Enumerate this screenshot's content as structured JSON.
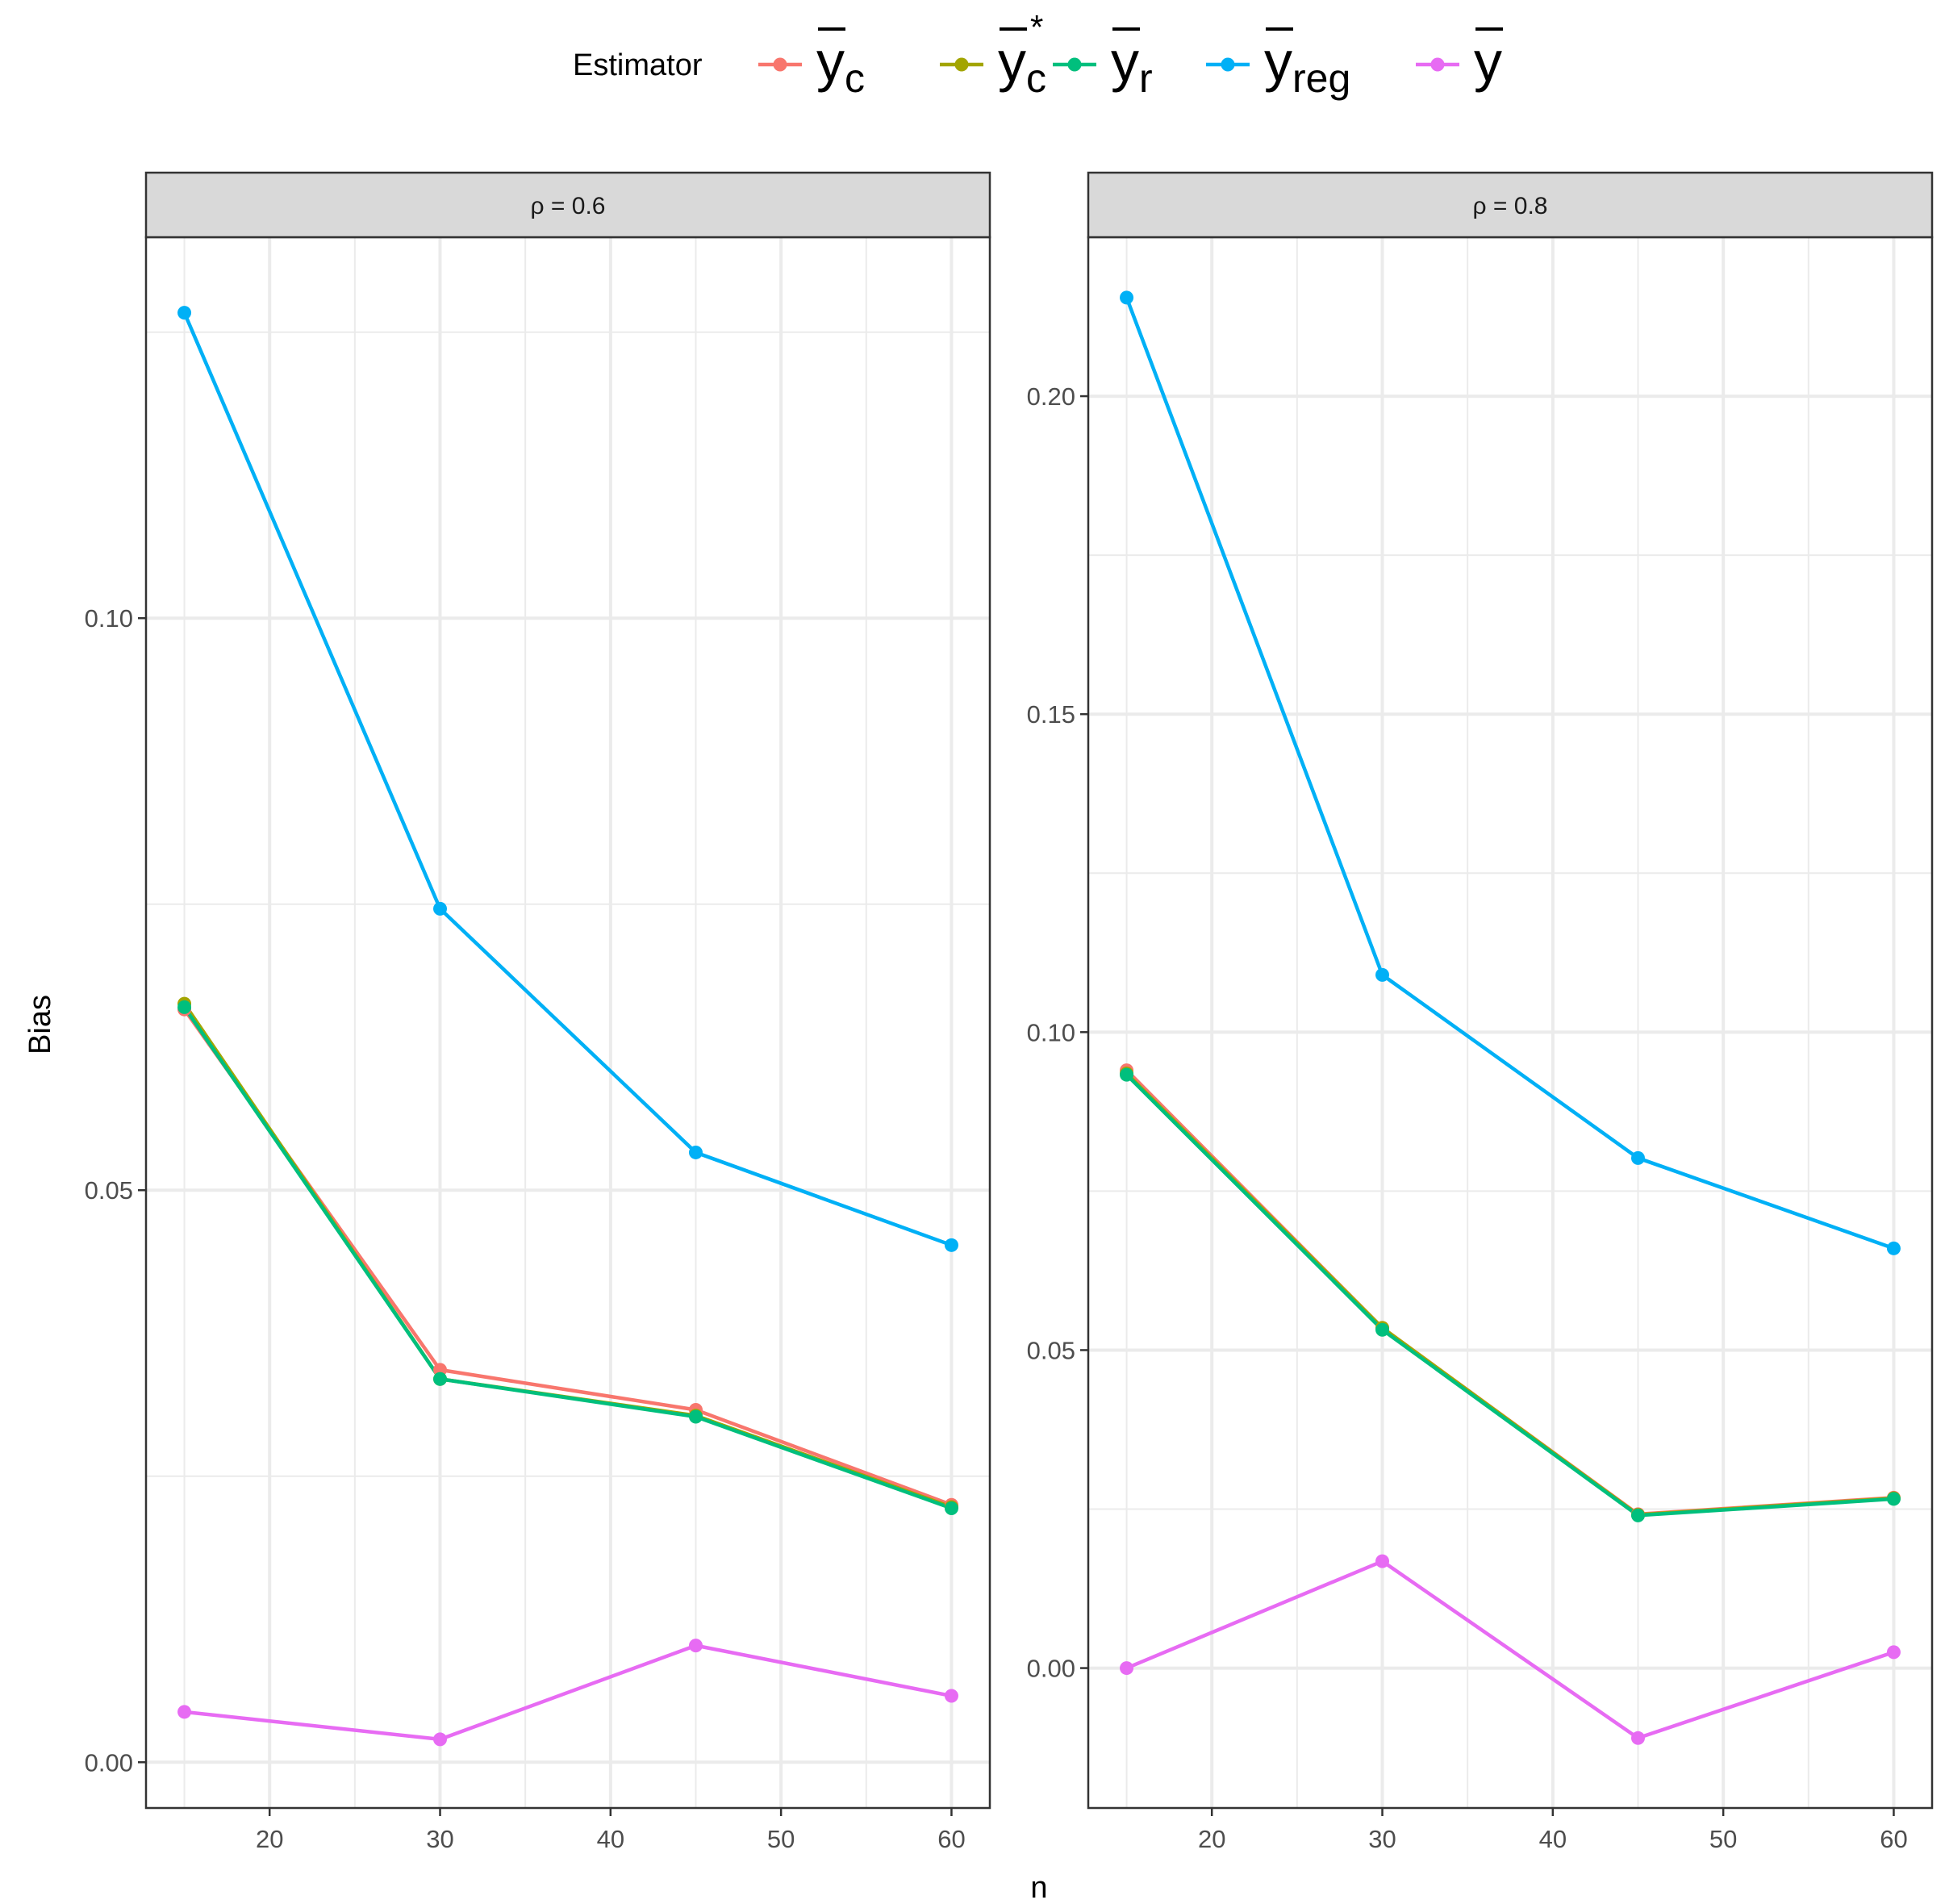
{
  "chart_data": {
    "type": "line",
    "xlabel": "n",
    "ylabel": "Bias",
    "legend": {
      "title": "Estimator",
      "placement": "top",
      "entries": [
        {
          "base": "y",
          "sub": "c",
          "sup": "",
          "color": "#F8766D"
        },
        {
          "base": "y",
          "sub": "c",
          "sup": "*",
          "color": "#A3A500"
        },
        {
          "base": "y",
          "sub": "r",
          "sup": "",
          "color": "#00BF7D"
        },
        {
          "base": "y",
          "sub": "reg",
          "sup": "",
          "color": "#00B0F6"
        },
        {
          "base": "y",
          "sub": "",
          "sup": "",
          "color": "#E76BF3"
        }
      ]
    },
    "grid": true,
    "x": [
      15,
      30,
      45,
      60
    ],
    "xlim": [
      12.75,
      62.25
    ],
    "xticks": [
      20,
      30,
      40,
      50,
      60
    ],
    "xtick_labels": [
      "20",
      "30",
      "40",
      "50",
      "60"
    ],
    "panels": [
      {
        "strip": "ρ = 0.6",
        "ylim": [
          -0.004,
          0.1333
        ],
        "yticks": [
          0.0,
          0.05,
          0.1
        ],
        "ytick_labels": [
          "0.00",
          "0.05",
          "0.10"
        ],
        "series": [
          {
            "values": [
              0.0658,
              0.0343,
              0.0308,
              0.0225
            ]
          },
          {
            "values": [
              0.0663,
              0.0335,
              0.0303,
              0.0223
            ]
          },
          {
            "values": [
              0.066,
              0.0335,
              0.0302,
              0.0222
            ]
          },
          {
            "values": [
              0.1267,
              0.0746,
              0.0533,
              0.0452
            ]
          },
          {
            "values": [
              0.0044,
              0.002,
              0.0102,
              0.0058
            ]
          }
        ]
      },
      {
        "strip": "ρ = 0.8",
        "ylim": [
          -0.022,
          0.225
        ],
        "yticks": [
          0.0,
          0.05,
          0.1,
          0.15,
          0.2
        ],
        "ytick_labels": [
          "0.00",
          "0.05",
          "0.10",
          "0.15",
          "0.20"
        ],
        "series": [
          {
            "values": [
              0.094,
              0.0535,
              0.0242,
              0.0268
            ]
          },
          {
            "values": [
              0.0935,
              0.0535,
              0.0241,
              0.0267
            ]
          },
          {
            "values": [
              0.0933,
              0.0532,
              0.024,
              0.0266
            ]
          },
          {
            "values": [
              0.2155,
              0.109,
              0.0802,
              0.066
            ]
          },
          {
            "values": [
              0.0,
              0.0168,
              -0.011,
              0.0025
            ]
          }
        ]
      }
    ]
  }
}
